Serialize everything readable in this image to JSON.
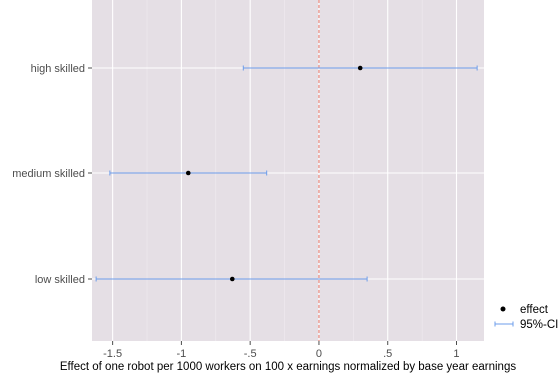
{
  "chart_data": {
    "type": "scatter",
    "subtype": "coefficient-plot-with-error-bars",
    "title": "",
    "xlabel": "Effect of one robot per 1000 workers on 100 x earnings normalized by base year earnings",
    "ylabel": "",
    "xlim": [
      -1.65,
      1.2
    ],
    "x_ticks": [
      -1.5,
      -1,
      -0.5,
      0,
      0.5,
      1
    ],
    "x_tick_labels": [
      "-1.5",
      "-1",
      "-.5",
      "0",
      ".5",
      "1"
    ],
    "categories": [
      "high skilled",
      "medium skilled",
      "low skilled"
    ],
    "effect": [
      0.3,
      -0.95,
      -0.63
    ],
    "ci_low": [
      -0.55,
      -1.52,
      -1.62
    ],
    "ci_high": [
      1.15,
      -0.38,
      0.35
    ],
    "reference_line": 0,
    "grid": true,
    "legend_position": "bottom-right",
    "legend": [
      "effect",
      "95%-CI"
    ],
    "colors": {
      "panel": "#e5dfe5",
      "grid": "#ffffff",
      "point": "#000000",
      "ci": "#6d9eeb",
      "reference": "#f08070"
    }
  }
}
